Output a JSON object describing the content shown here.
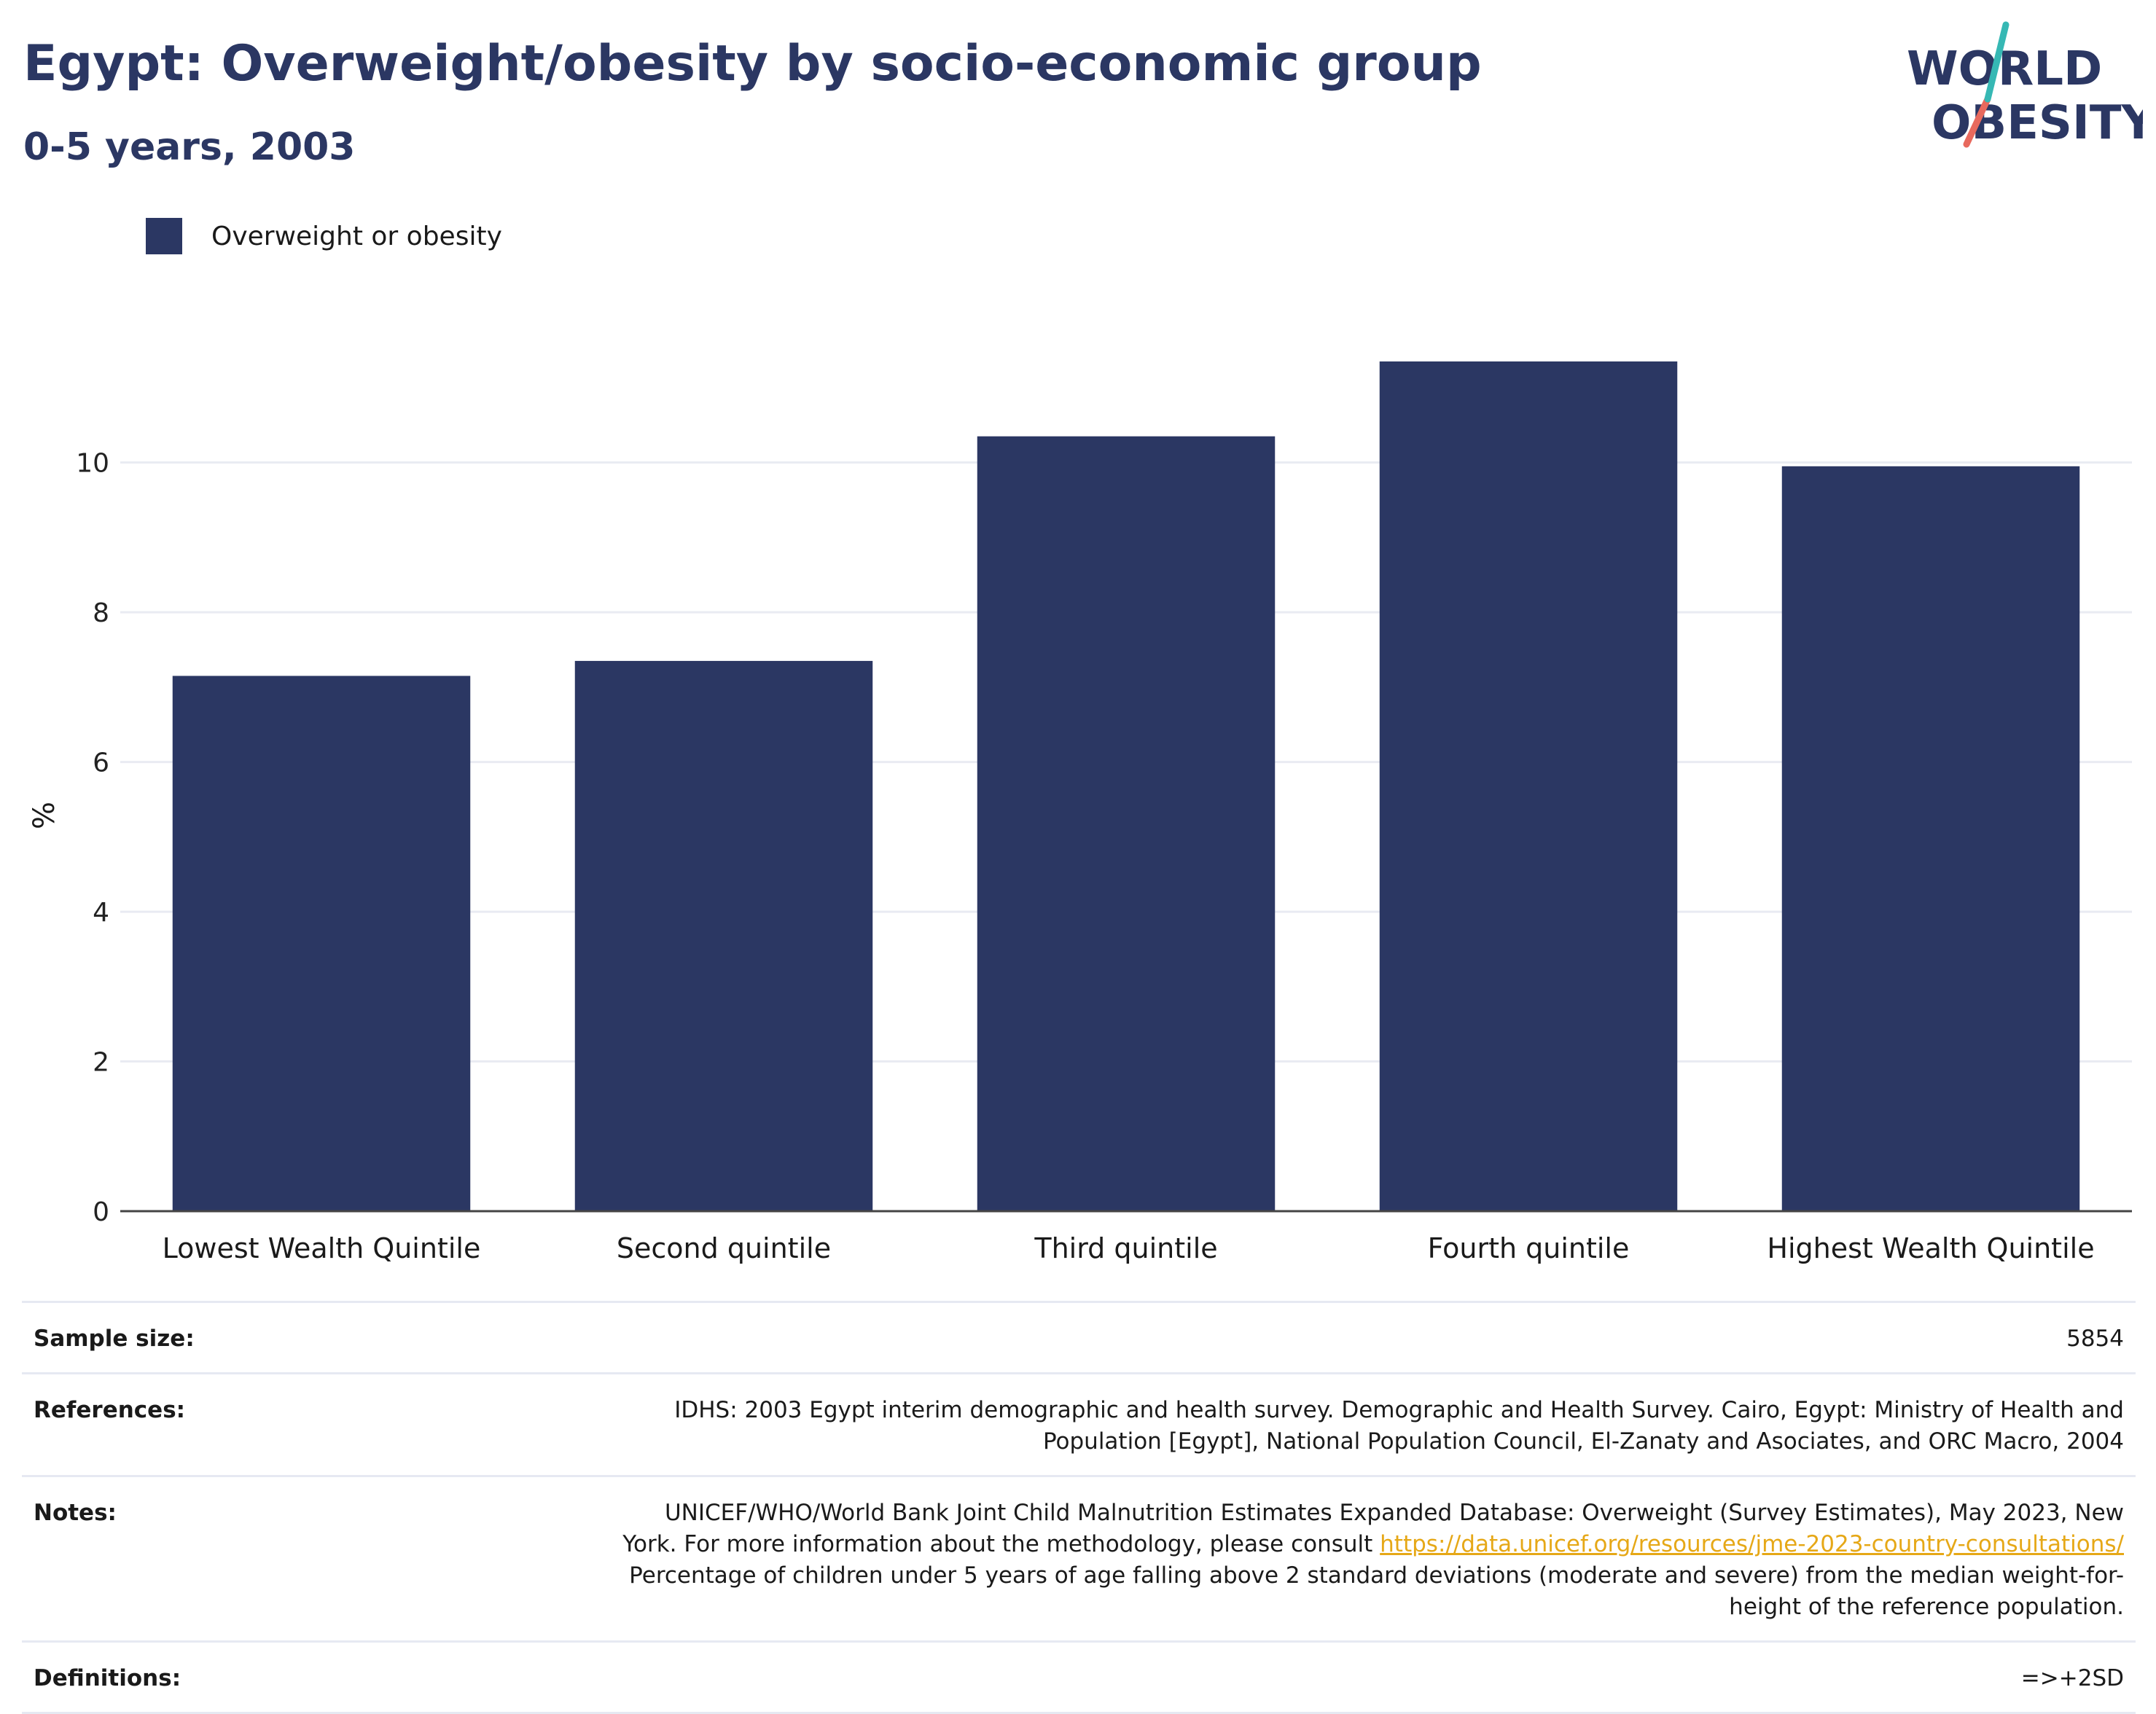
{
  "header": {
    "title": "Egypt: Overweight/obesity by socio-economic group",
    "subtitle": "0-5 years, 2003"
  },
  "logo": {
    "line1": "WORLD",
    "line2": "OBESITY"
  },
  "colors": {
    "bar": "#2b3763",
    "grid": "#e9ebf2",
    "axis": "#444444",
    "link": "#e6a817"
  },
  "chart_data": {
    "type": "bar",
    "categories": [
      "Lowest Wealth Quintile",
      "Second quintile",
      "Third quintile",
      "Fourth quintile",
      "Highest Wealth Quintile"
    ],
    "series": [
      {
        "name": "Overweight or obesity",
        "values": [
          7.15,
          7.35,
          10.35,
          11.35,
          9.95
        ]
      }
    ],
    "ylabel": "%",
    "xlabel": "",
    "ylim": [
      0,
      12
    ],
    "yticks": [
      0,
      2,
      4,
      6,
      8,
      10
    ],
    "grid": true,
    "legend_position": "top-left"
  },
  "info": {
    "sample_size": {
      "label": "Sample size:",
      "value": "5854"
    },
    "references": {
      "label": "References:",
      "value": "IDHS: 2003 Egypt interim demographic and health survey. Demographic and Health Survey. Cairo, Egypt: Ministry of Health and Population [Egypt], National Population Council, El-Zanaty and Asociates, and ORC Macro, 2004"
    },
    "notes": {
      "label": "Notes:",
      "text_before": "UNICEF/WHO/World Bank Joint Child Malnutrition Estimates Expanded Database: Overweight (Survey Estimates), May 2023, New York. For more information about the methodology, please consult ",
      "link": "https://data.unicef.org/resources/jme-2023-country-consultations/",
      "text_after": " Percentage of children under 5 years of age falling above 2 standard deviations (moderate and severe) from the median weight-for-height of the reference population."
    },
    "definitions": {
      "label": "Definitions:",
      "value": "=>+2SD"
    }
  }
}
